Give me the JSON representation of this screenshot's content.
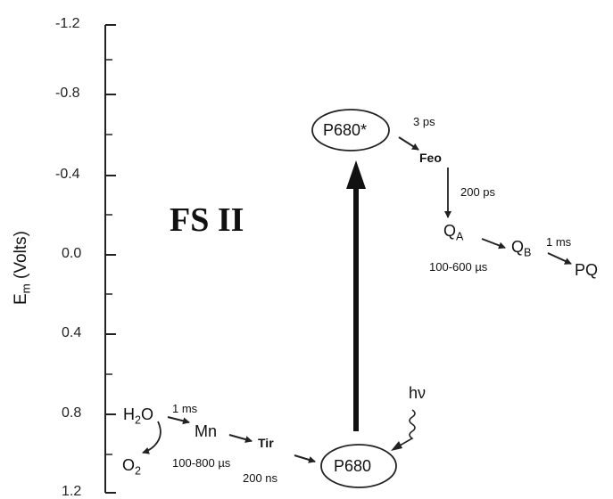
{
  "title": "FS II",
  "y_axis": {
    "label_main": "E",
    "label_sub": "m",
    "label_rest": " (Volts)",
    "ticks": [
      "-1.2",
      "-0.8",
      "-0.4",
      "0.0",
      "0.4",
      "0.8",
      "1.2"
    ]
  },
  "species": {
    "p680_star": "P680*",
    "p680": "P680",
    "feo": "Feo",
    "qa_main": "Q",
    "qa_sub": "A",
    "qb_main": "Q",
    "qb_sub": "B",
    "pq": "PQ",
    "h2o_a": "H",
    "h2o_sub": "2",
    "h2o_b": "O",
    "o2_main": "O",
    "o2_sub": "2",
    "mn": "Mn",
    "tir": "Tir",
    "hv": "hν"
  },
  "times": {
    "p680star_to_feo": "3 ps",
    "feo_to_qa": "200  ps",
    "qa_to_qb": "100-600 µs",
    "qb_to_pq": "1 ms",
    "h2o_to_mn": "1 ms",
    "mn_to_tir": "100-800 µs",
    "tir_to_p680": "200 ns"
  }
}
